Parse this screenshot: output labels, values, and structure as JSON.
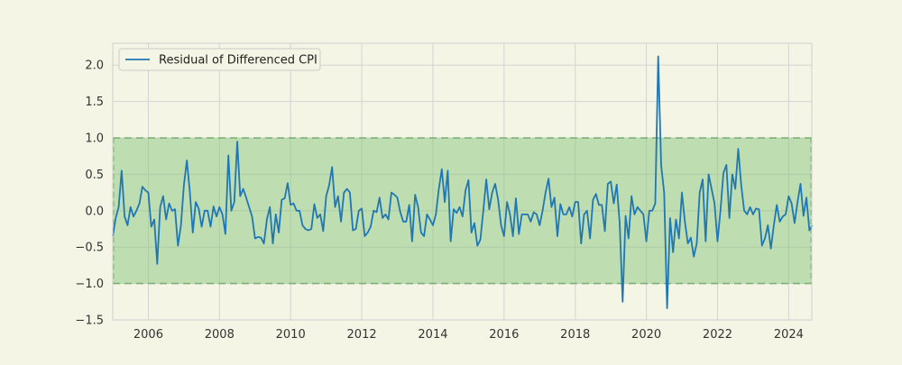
{
  "chart_data": {
    "type": "line",
    "title": "",
    "xlabel": "",
    "ylabel": "",
    "xlim": [
      2005.0,
      2024.65
    ],
    "ylim": [
      -1.5,
      2.3
    ],
    "xticks": [
      2006,
      2008,
      2010,
      2012,
      2014,
      2016,
      2018,
      2020,
      2022,
      2024
    ],
    "xtick_labels": [
      "2006",
      "2008",
      "2010",
      "2012",
      "2014",
      "2016",
      "2018",
      "2020",
      "2022",
      "2024"
    ],
    "yticks": [
      -1.5,
      -1.0,
      -0.5,
      0.0,
      0.5,
      1.0,
      1.5,
      2.0
    ],
    "ytick_labels": [
      "−1.5",
      "−1.0",
      "−0.5",
      "0.0",
      "0.5",
      "1.0",
      "1.5",
      "2.0"
    ],
    "grid": true,
    "legend_position": "top-left",
    "band": {
      "lower": -1.0,
      "upper": 1.0,
      "fill": "#8fc884",
      "edge": "#6aa864"
    },
    "series": [
      {
        "name": "Residual of Differenced CPI",
        "color": "#1f77b4",
        "start": 2005.0,
        "step": 0.08333,
        "values": [
          -0.35,
          -0.1,
          0.05,
          0.55,
          -0.08,
          -0.2,
          0.05,
          -0.08,
          0.0,
          0.1,
          0.33,
          0.28,
          0.25,
          -0.22,
          -0.12,
          -0.73,
          0.05,
          0.2,
          -0.12,
          0.1,
          0.0,
          0.02,
          -0.48,
          -0.2,
          0.35,
          0.69,
          0.26,
          -0.3,
          0.12,
          0.03,
          -0.22,
          0.0,
          0.0,
          -0.22,
          0.06,
          -0.08,
          0.05,
          -0.05,
          -0.32,
          0.76,
          0.0,
          0.12,
          0.95,
          0.2,
          0.3,
          0.18,
          0.05,
          -0.08,
          -0.38,
          -0.36,
          -0.37,
          -0.45,
          -0.12,
          0.05,
          -0.45,
          -0.05,
          -0.3,
          0.15,
          0.17,
          0.38,
          0.08,
          0.1,
          0.0,
          0.0,
          -0.2,
          -0.25,
          -0.27,
          -0.25,
          0.09,
          -0.1,
          -0.05,
          -0.28,
          0.2,
          0.35,
          0.6,
          0.05,
          0.2,
          -0.15,
          0.25,
          0.3,
          0.25,
          -0.27,
          -0.25,
          0.0,
          0.03,
          -0.35,
          -0.3,
          -0.22,
          0.0,
          -0.02,
          0.18,
          -0.1,
          -0.05,
          -0.12,
          0.25,
          0.22,
          0.18,
          -0.02,
          -0.15,
          -0.15,
          0.08,
          -0.42,
          0.22,
          0.05,
          -0.3,
          -0.35,
          -0.05,
          -0.12,
          -0.2,
          -0.05,
          0.3,
          0.57,
          0.12,
          0.55,
          -0.42,
          0.02,
          -0.03,
          0.05,
          -0.08,
          0.28,
          0.42,
          -0.3,
          -0.17,
          -0.48,
          -0.4,
          0.0,
          0.43,
          0.02,
          0.25,
          0.37,
          0.15,
          -0.2,
          -0.35,
          0.12,
          -0.05,
          -0.35,
          0.17,
          -0.32,
          -0.05,
          -0.05,
          -0.05,
          -0.15,
          -0.02,
          -0.05,
          -0.2,
          0.0,
          0.25,
          0.44,
          0.05,
          0.18,
          -0.35,
          0.09,
          -0.05,
          -0.05,
          0.05,
          -0.08,
          0.12,
          0.12,
          -0.45,
          -0.05,
          0.0,
          -0.38,
          0.15,
          0.23,
          0.08,
          0.08,
          -0.28,
          0.37,
          0.4,
          0.1,
          0.36,
          -0.17,
          -1.25,
          -0.07,
          -0.38,
          0.2,
          -0.05,
          0.05,
          0.0,
          -0.05,
          -0.42,
          0.0,
          0.0,
          0.1,
          2.12,
          0.62,
          0.25,
          -1.34,
          -0.1,
          -0.57,
          -0.12,
          -0.38,
          0.25,
          -0.15,
          -0.45,
          -0.37,
          -0.63,
          -0.45,
          0.25,
          0.43,
          -0.42,
          0.5,
          0.3,
          0.1,
          -0.42,
          0.0,
          0.52,
          0.63,
          -0.1,
          0.5,
          0.3,
          0.85,
          0.35,
          0.0,
          -0.05,
          0.05,
          -0.05,
          0.03,
          0.02,
          -0.48,
          -0.38,
          -0.2,
          -0.52,
          -0.2,
          0.08,
          -0.15,
          -0.08,
          -0.05,
          0.2,
          0.1,
          -0.17,
          0.12,
          0.37,
          -0.07,
          0.18,
          -0.27,
          -0.2
        ]
      }
    ]
  }
}
